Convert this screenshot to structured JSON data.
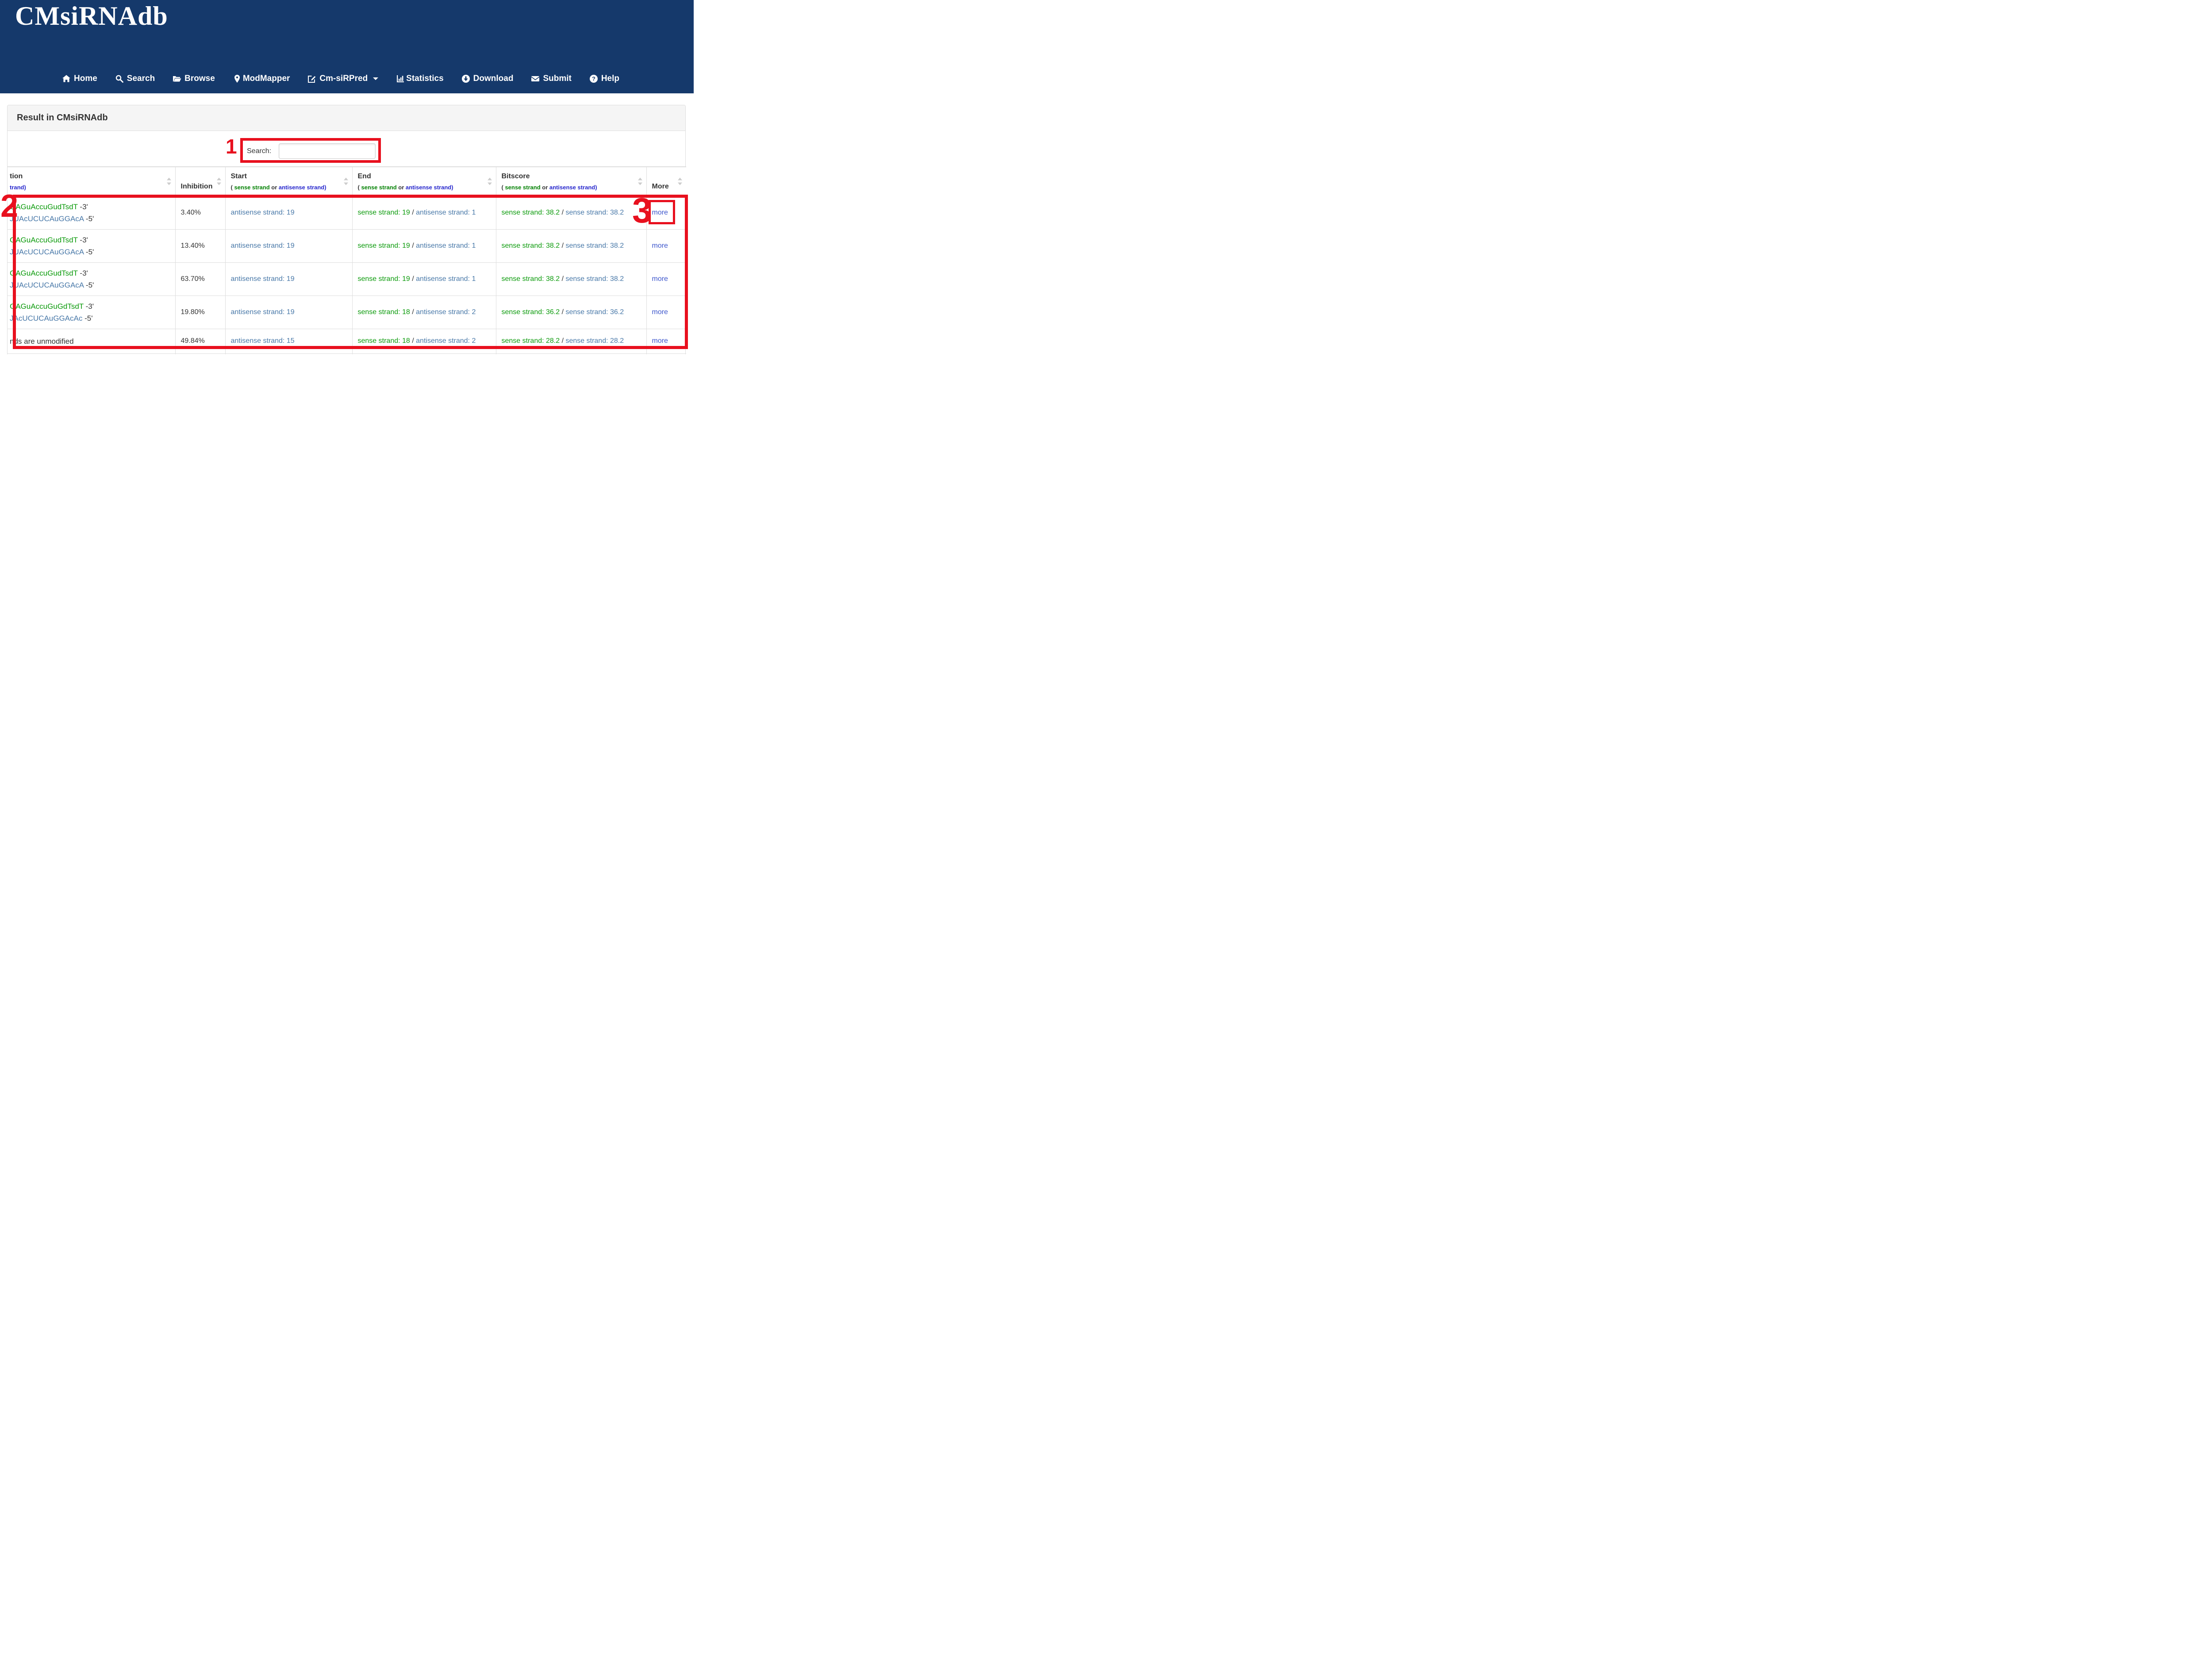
{
  "brand": {
    "logo": "CMsiRNAdb"
  },
  "nav": {
    "items": [
      {
        "label": "Home",
        "icon": "home-icon"
      },
      {
        "label": "Search",
        "icon": "search-icon"
      },
      {
        "label": "Browse",
        "icon": "folder-open-icon"
      },
      {
        "label": "ModMapper",
        "icon": "map-marker-icon"
      },
      {
        "label": "Cm-siRPred",
        "icon": "edit-icon",
        "has_caret": true
      },
      {
        "label": "Statistics",
        "icon": "bar-chart-icon"
      },
      {
        "label": "Download",
        "icon": "download-circle-icon"
      },
      {
        "label": "Submit",
        "icon": "envelope-icon"
      },
      {
        "label": "Help",
        "icon": "question-circle-icon"
      }
    ]
  },
  "panel": {
    "title": "Result in CMsiRNAdb"
  },
  "search": {
    "label": "Search:",
    "value": ""
  },
  "table": {
    "strand_note": {
      "open": "( ",
      "sense": "sense strand",
      "or": " or ",
      "antisense": "antisense strand)"
    },
    "columns": [
      {
        "title": "tion",
        "subtitle": "trand)"
      },
      {
        "title": "Inhibition"
      },
      {
        "title": "Start"
      },
      {
        "title": "End"
      },
      {
        "title": "Bitscore"
      },
      {
        "title": "More"
      }
    ],
    "rows": [
      {
        "seq_sense": "GAGuAccuGudTsdT",
        "seq_sense_suffix": " -3'",
        "seq_antisense": "JUAcUCUCAuGGAcA",
        "seq_antisense_suffix": " -5'",
        "inhibition": "3.40%",
        "start_antisense": "antisense strand: 19",
        "end_sense": "sense strand: 19",
        "end_sep": " / ",
        "end_antisense": "antisense strand: 1",
        "bitscore_sense": "sense strand: 38.2",
        "bitscore_sep": " / ",
        "bitscore_alt": "sense strand: 38.2",
        "more": "more"
      },
      {
        "seq_sense": "GAGuAccuGudTsdT",
        "seq_sense_suffix": " -3'",
        "seq_antisense": "JUAcUCUCAuGGAcA",
        "seq_antisense_suffix": " -5'",
        "inhibition": "13.40%",
        "start_antisense": "antisense strand: 19",
        "end_sense": "sense strand: 19",
        "end_sep": " / ",
        "end_antisense": "antisense strand: 1",
        "bitscore_sense": "sense strand: 38.2",
        "bitscore_sep": " / ",
        "bitscore_alt": "sense strand: 38.2",
        "more": "more"
      },
      {
        "seq_sense": "GAGuAccuGudTsdT",
        "seq_sense_suffix": " -3'",
        "seq_antisense": "JUAcUCUCAuGGAcA",
        "seq_antisense_suffix": " -5'",
        "inhibition": "63.70%",
        "start_antisense": "antisense strand: 19",
        "end_sense": "sense strand: 19",
        "end_sep": " / ",
        "end_antisense": "antisense strand: 1",
        "bitscore_sense": "sense strand: 38.2",
        "bitscore_sep": " / ",
        "bitscore_alt": "sense strand: 38.2",
        "more": "more"
      },
      {
        "seq_sense": "GAGuAccuGuGdTsdT",
        "seq_sense_suffix": " -3'",
        "seq_antisense": "JAcUCUCAuGGAcAc",
        "seq_antisense_suffix": " -5'",
        "inhibition": "19.80%",
        "start_antisense": "antisense strand: 19",
        "end_sense": "sense strand: 18",
        "end_sep": " / ",
        "end_antisense": "antisense strand: 2",
        "bitscore_sense": "sense strand: 36.2",
        "bitscore_sep": " / ",
        "bitscore_alt": "sense strand: 36.2",
        "more": "more"
      },
      {
        "plain_text": "nds are unmodified",
        "inhibition": "49.84%",
        "start_antisense": "antisense strand: 15",
        "end_sense": "sense strand: 18",
        "end_sep": " / ",
        "end_antisense": "antisense strand: 2",
        "bitscore_sense": "sense strand: 28.2",
        "bitscore_sep": " / ",
        "bitscore_alt": "sense strand: 28.2",
        "more": "more"
      }
    ]
  },
  "annotations": {
    "step1": "1",
    "step2": "2",
    "step3": "3"
  },
  "colors": {
    "header_navy": "#15396b",
    "annotation_red": "#e8101e",
    "sense_green": "#0a9a0a",
    "antisense_steel_blue": "#4878a8",
    "header_note_blue": "#2525cc",
    "more_link_blue": "#3c55cc"
  }
}
